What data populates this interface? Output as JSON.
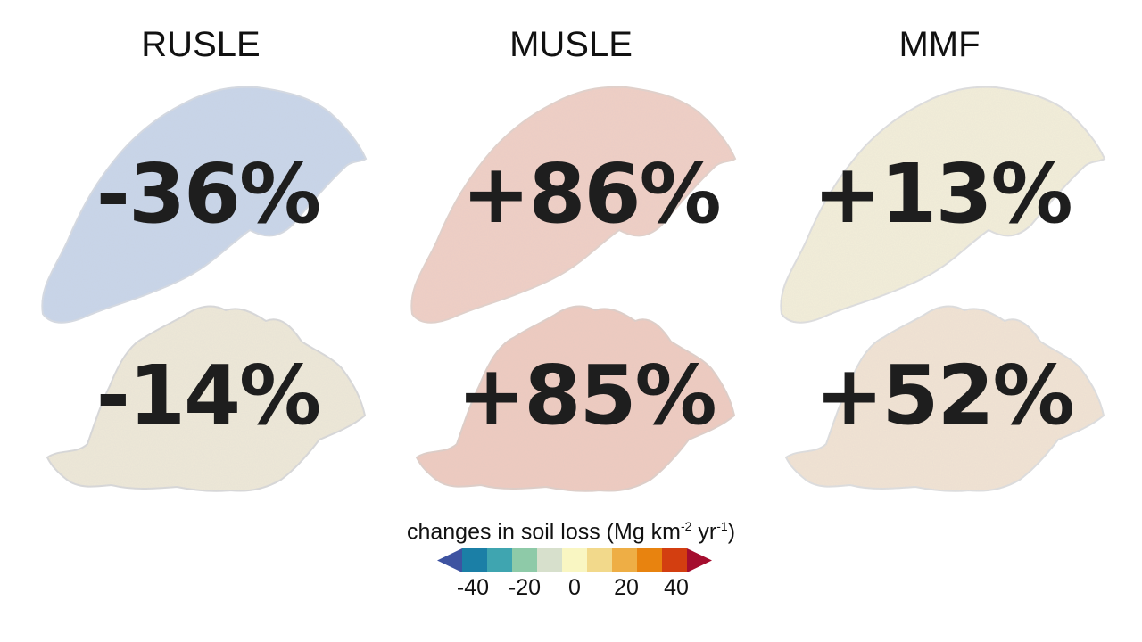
{
  "columns": [
    {
      "title": "RUSLE",
      "upper": "-36%",
      "lower": "-14%",
      "tint_upper": "#c9d6ea",
      "tint_lower": "#efe9d8"
    },
    {
      "title": "MUSLE",
      "upper": "+86%",
      "lower": "+85%",
      "tint_upper": "#f1cfc4",
      "tint_lower": "#f0cbbf"
    },
    {
      "title": "MMF",
      "upper": "+13%",
      "lower": "+52%",
      "tint_upper": "#f4efd9",
      "tint_lower": "#f3e4d3"
    }
  ],
  "legend": {
    "title_main": "changes in soil loss (Mg km",
    "sup1": "-2",
    "title_mid": " yr",
    "sup2": "-1",
    "title_end": ")",
    "ticks": [
      "-40",
      "-20",
      "0",
      "20",
      "40"
    ],
    "colors": [
      "#3e53a1",
      "#1b7fa6",
      "#3fa5b0",
      "#8ecaa8",
      "#d7e0cc",
      "#f9f6c2",
      "#f2d98b",
      "#eeae45",
      "#e8830f",
      "#d33e10",
      "#a50d2e"
    ]
  }
}
